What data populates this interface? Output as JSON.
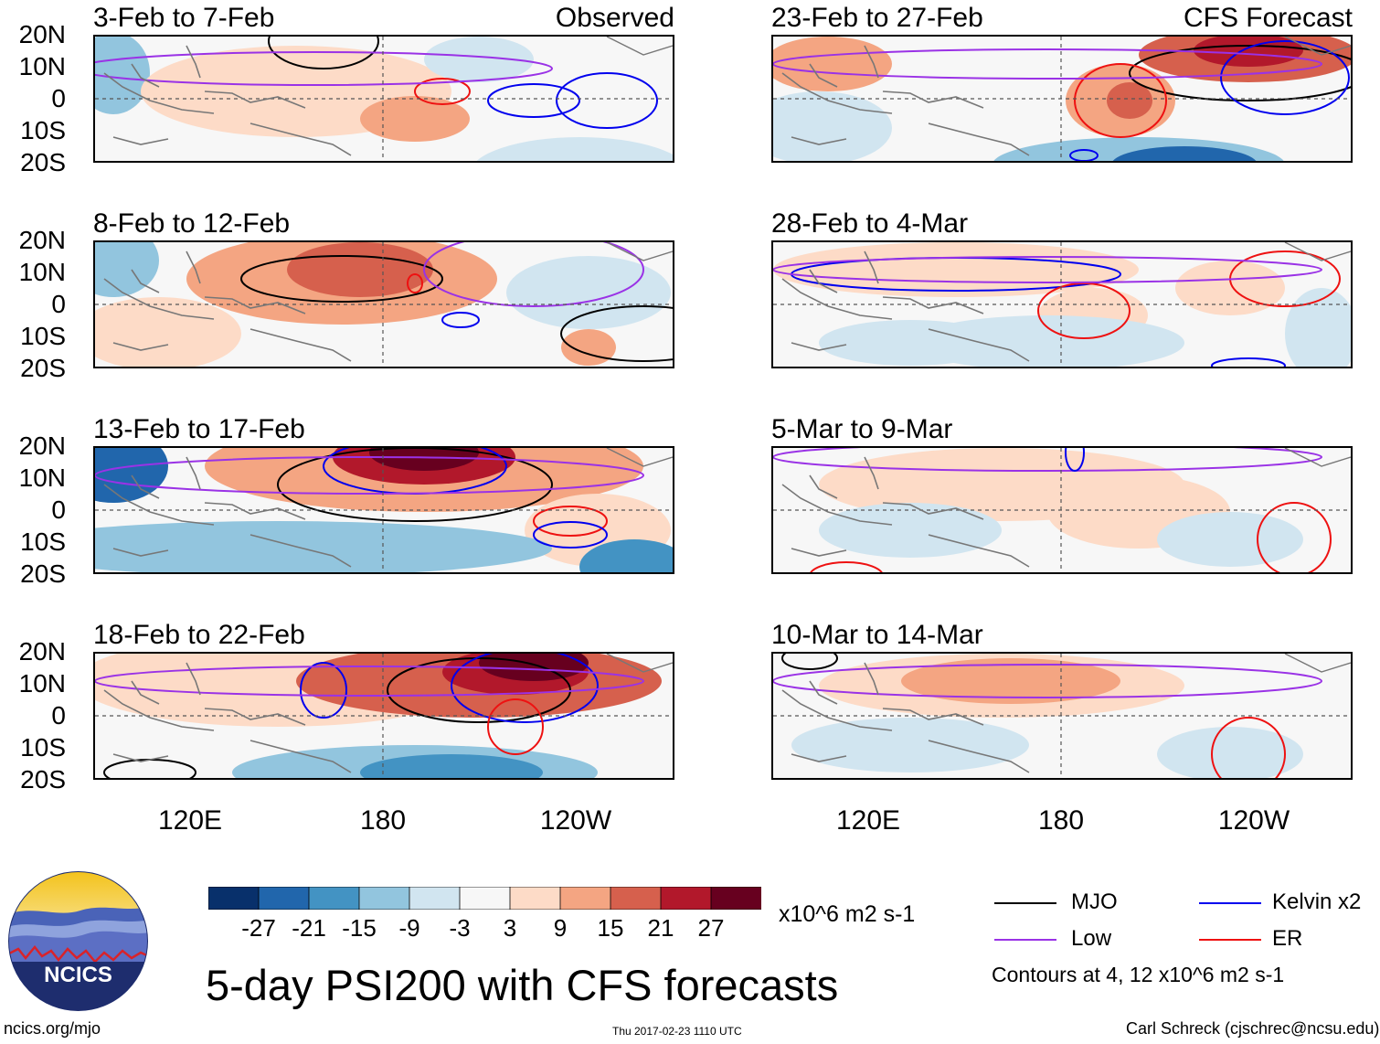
{
  "chart_data": {
    "type": "heatmap",
    "title": "5-day PSI200 with CFS forecasts",
    "units": "x10^6 m2 s-1",
    "y_ticks": [
      "20N",
      "10N",
      "0",
      "10S",
      "20S"
    ],
    "x_ticks": [
      "120E",
      "180",
      "120W"
    ],
    "lat_range": [
      -20,
      20
    ],
    "lon_range": [
      "90E",
      "90W"
    ],
    "colorbar_ticks": [
      "-27",
      "-21",
      "-15",
      "-9",
      "-3",
      "3",
      "9",
      "15",
      "21",
      "27"
    ],
    "colorbar_colors": [
      "#08306b",
      "#2166ac",
      "#4393c3",
      "#92c5de",
      "#d1e5f0",
      "#f7f7f7",
      "#fddbc7",
      "#f4a582",
      "#d6604d",
      "#b2182b",
      "#67001f"
    ],
    "observed_label": "Observed",
    "forecast_label": "CFS Forecast",
    "panels": [
      {
        "column": "Observed",
        "period": "3-Feb to 7-Feb"
      },
      {
        "column": "Observed",
        "period": "8-Feb to 12-Feb"
      },
      {
        "column": "Observed",
        "period": "13-Feb to 17-Feb"
      },
      {
        "column": "Observed",
        "period": "18-Feb to 22-Feb"
      },
      {
        "column": "CFS Forecast",
        "period": "23-Feb to 27-Feb"
      },
      {
        "column": "CFS Forecast",
        "period": "28-Feb to 4-Mar"
      },
      {
        "column": "CFS Forecast",
        "period": "5-Mar to 9-Mar"
      },
      {
        "column": "CFS Forecast",
        "period": "10-Mar to 14-Mar"
      }
    ],
    "legend": [
      {
        "name": "MJO",
        "color": "#000000"
      },
      {
        "name": "Kelvin x2",
        "color": "#0000ee"
      },
      {
        "name": "Low",
        "color": "#9a32e6"
      },
      {
        "name": "ER",
        "color": "#ee1111"
      }
    ],
    "contour_note": "Contours at 4, 12 x10^6 m2 s-1"
  },
  "footer": {
    "logo_text": "NCICS",
    "url": "ncics.org/mjo",
    "timestamp": "Thu 2017-02-23 1110 UTC",
    "author": "Carl Schreck (cjschrec@ncsu.edu)"
  }
}
